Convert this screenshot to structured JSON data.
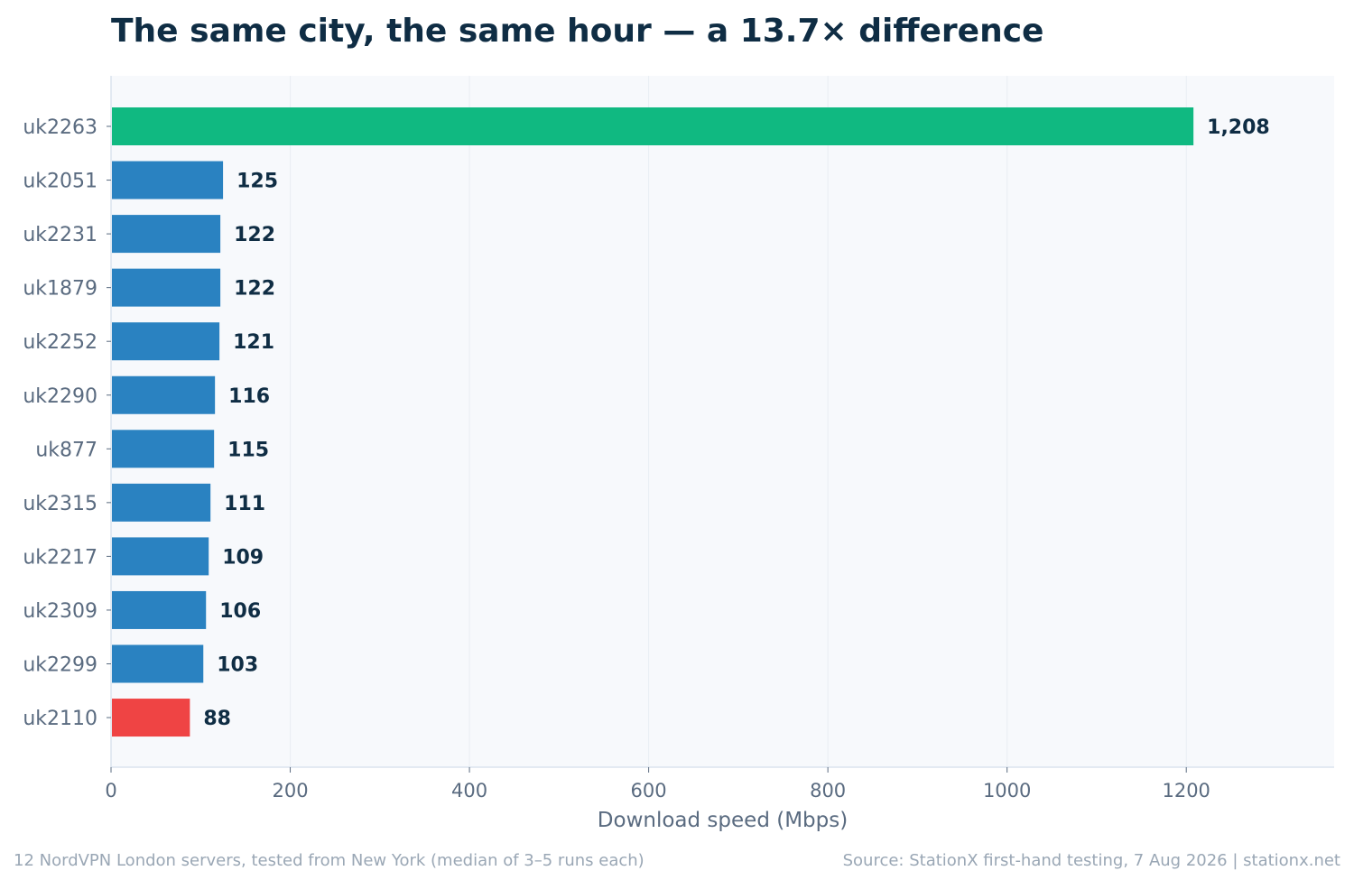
{
  "chart_data": {
    "type": "bar",
    "orientation": "horizontal",
    "title": "The same city, the same hour — a 13.7× difference",
    "xlabel": "Download speed (Mbps)",
    "ylabel": "",
    "xlim": [
      0,
      1365
    ],
    "x_ticks": [
      "0",
      "200",
      "400",
      "600",
      "800",
      "1000",
      "1200"
    ],
    "x_tick_values": [
      0,
      200,
      400,
      600,
      800,
      1000,
      1200
    ],
    "grid": "vertical",
    "categories": [
      "uk2263",
      "uk2051",
      "uk2231",
      "uk1879",
      "uk2252",
      "uk2290",
      "uk877",
      "uk2315",
      "uk2217",
      "uk2309",
      "uk2299",
      "uk2110"
    ],
    "values": [
      1208,
      125,
      122,
      122,
      121,
      116,
      115,
      111,
      109,
      106,
      103,
      88
    ],
    "value_labels": [
      "1,208",
      "125",
      "122",
      "122",
      "121",
      "116",
      "115",
      "111",
      "109",
      "106",
      "103",
      "88"
    ],
    "colors": {
      "fastest": "#10b981",
      "default": "#2a82c1",
      "slowest": "#ef4444",
      "plot_background": "#f7f9fc",
      "title": "#0f2d44",
      "axis_text": "#5a6b80"
    }
  },
  "footnote_left": "12 NordVPN London servers, tested from New York (median of 3–5 runs each)",
  "footnote_right": "Source: StationX first-hand testing, 7 Aug 2026 | stationx.net"
}
